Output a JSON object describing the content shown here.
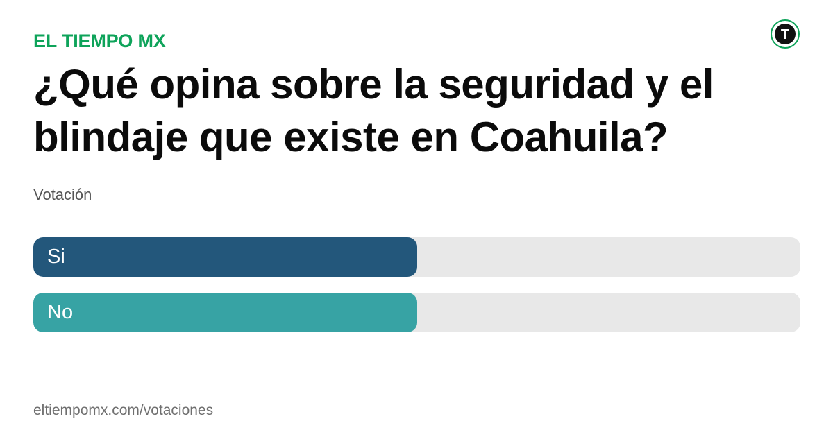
{
  "brand": {
    "name": "EL TIEMPO MX"
  },
  "logo": {
    "icon": "el-tiempo-t-logo-icon",
    "letter": "T",
    "colors": {
      "ring": "#0ea35a",
      "inner": "#111111",
      "letter": "#ffffff"
    }
  },
  "poll": {
    "question": "¿Qué opina sobre la seguridad y el blindaje que existe en Coahuila?",
    "type_label": "Votación",
    "options": [
      {
        "label": "Si",
        "share": 0.5,
        "color": "#23577b"
      },
      {
        "label": "No",
        "share": 0.5,
        "color": "#37a3a4"
      }
    ]
  },
  "footer": {
    "url": "eltiempomx.com/votaciones"
  },
  "colors": {
    "brand": "#0ea35a",
    "track": "#e8e8e8"
  }
}
